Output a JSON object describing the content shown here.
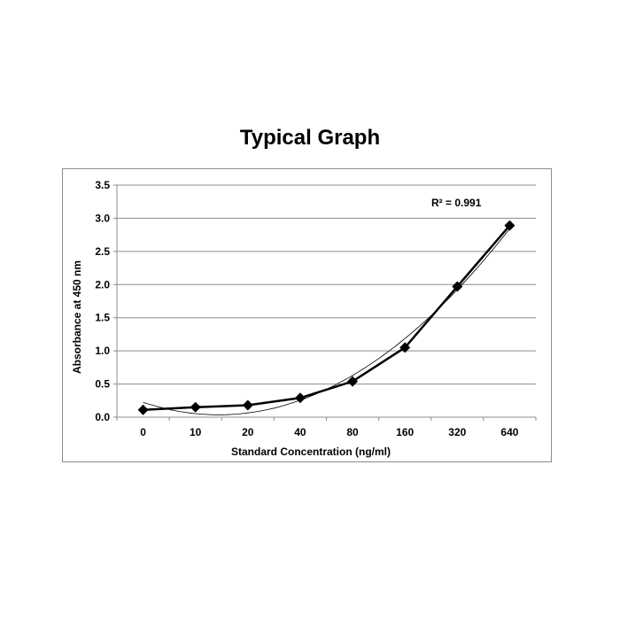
{
  "chart_data": {
    "type": "line",
    "title": "Typical Graph",
    "xlabel": "Standard Concentration (ng/ml)",
    "ylabel": "Absorbance at 450 nm",
    "categories": [
      "0",
      "10",
      "20",
      "40",
      "80",
      "160",
      "320",
      "640"
    ],
    "series": [
      {
        "values": [
          0.11,
          0.15,
          0.18,
          0.29,
          0.54,
          1.05,
          1.97,
          2.89
        ],
        "marker": "diamond",
        "color": "#000000"
      }
    ],
    "trendline": {
      "type": "polynomial",
      "r_squared_label": "R² = 0.991"
    },
    "yticks": [
      "0.0",
      "0.5",
      "1.0",
      "1.5",
      "2.0",
      "2.5",
      "3.0",
      "3.5"
    ],
    "ylim": [
      0,
      3.5
    ],
    "grid": "horizontal",
    "legend": "none"
  }
}
